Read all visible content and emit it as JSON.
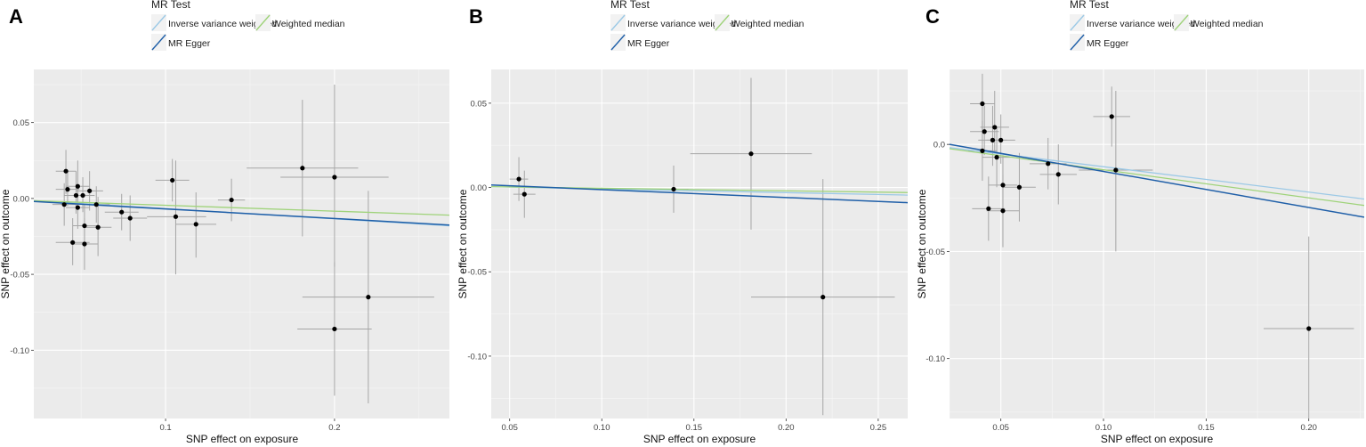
{
  "figure": {
    "legend_title": "MR Test",
    "methods": [
      {
        "name": "Inverse variance weighted",
        "color": "#9cc9e6"
      },
      {
        "name": "Weighted median",
        "color": "#9fd37a"
      },
      {
        "name": "MR Egger",
        "color": "#1f5fa8"
      }
    ],
    "colors": {
      "panel_bg": "#ebebeb",
      "grid_major": "#ffffff",
      "point": "#000000",
      "errorbar": "#a6a6a6"
    }
  },
  "chart_data": [
    {
      "panel": "A",
      "type": "scatter",
      "xlabel": "SNP effect on exposure",
      "ylabel": "SNP effect on outcome",
      "xlim": [
        0.022,
        0.268
      ],
      "ylim": [
        -0.145,
        0.085
      ],
      "xticks": [
        0.1,
        0.2
      ],
      "xtick_labels": [
        "0.1",
        "0.2"
      ],
      "yticks": [
        0.05,
        0.0,
        -0.05,
        -0.1
      ],
      "ytick_labels": [
        "0.05",
        "0.00",
        "-0.05",
        "-0.10"
      ],
      "points": [
        {
          "x": 0.041,
          "y": 0.018,
          "xlo": 0.035,
          "xhi": 0.047,
          "ylo": 0.003,
          "yhi": 0.032
        },
        {
          "x": 0.042,
          "y": 0.006,
          "xlo": 0.035,
          "xhi": 0.049,
          "ylo": -0.005,
          "yhi": 0.018
        },
        {
          "x": 0.048,
          "y": 0.008,
          "xlo": 0.041,
          "xhi": 0.055,
          "ylo": -0.004,
          "yhi": 0.025
        },
        {
          "x": 0.047,
          "y": 0.002,
          "xlo": 0.04,
          "xhi": 0.054,
          "ylo": -0.01,
          "yhi": 0.018
        },
        {
          "x": 0.051,
          "y": 0.002,
          "xlo": 0.044,
          "xhi": 0.058,
          "ylo": -0.009,
          "yhi": 0.014
        },
        {
          "x": 0.04,
          "y": -0.004,
          "xlo": 0.033,
          "xhi": 0.047,
          "ylo": -0.018,
          "yhi": 0.01
        },
        {
          "x": 0.048,
          "y": -0.006,
          "xlo": 0.041,
          "xhi": 0.055,
          "ylo": -0.02,
          "yhi": 0.008
        },
        {
          "x": 0.055,
          "y": 0.005,
          "xlo": 0.047,
          "xhi": 0.063,
          "ylo": -0.008,
          "yhi": 0.018
        },
        {
          "x": 0.059,
          "y": -0.004,
          "xlo": 0.051,
          "xhi": 0.067,
          "ylo": -0.016,
          "yhi": 0.008
        },
        {
          "x": 0.052,
          "y": -0.018,
          "xlo": 0.045,
          "xhi": 0.059,
          "ylo": -0.032,
          "yhi": -0.004
        },
        {
          "x": 0.06,
          "y": -0.019,
          "xlo": 0.052,
          "xhi": 0.068,
          "ylo": -0.038,
          "yhi": 0.001
        },
        {
          "x": 0.045,
          "y": -0.029,
          "xlo": 0.035,
          "xhi": 0.055,
          "ylo": -0.044,
          "yhi": -0.013
        },
        {
          "x": 0.052,
          "y": -0.03,
          "xlo": 0.044,
          "xhi": 0.06,
          "ylo": -0.047,
          "yhi": -0.013
        },
        {
          "x": 0.074,
          "y": -0.009,
          "xlo": 0.064,
          "xhi": 0.084,
          "ylo": -0.021,
          "yhi": 0.003
        },
        {
          "x": 0.079,
          "y": -0.013,
          "xlo": 0.069,
          "xhi": 0.089,
          "ylo": -0.028,
          "yhi": 0.002
        },
        {
          "x": 0.104,
          "y": 0.012,
          "xlo": 0.094,
          "xhi": 0.114,
          "ylo": -0.002,
          "yhi": 0.026
        },
        {
          "x": 0.106,
          "y": -0.012,
          "xlo": 0.089,
          "xhi": 0.124,
          "ylo": -0.05,
          "yhi": 0.025
        },
        {
          "x": 0.118,
          "y": -0.017,
          "xlo": 0.106,
          "xhi": 0.13,
          "ylo": -0.039,
          "yhi": 0.004
        },
        {
          "x": 0.139,
          "y": -0.001,
          "xlo": 0.131,
          "xhi": 0.147,
          "ylo": -0.015,
          "yhi": 0.013
        },
        {
          "x": 0.181,
          "y": 0.02,
          "xlo": 0.148,
          "xhi": 0.214,
          "ylo": -0.025,
          "yhi": 0.065
        },
        {
          "x": 0.2,
          "y": 0.014,
          "xlo": 0.168,
          "xhi": 0.232,
          "ylo": -0.045,
          "yhi": 0.075
        },
        {
          "x": 0.22,
          "y": -0.065,
          "xlo": 0.181,
          "xhi": 0.259,
          "ylo": -0.135,
          "yhi": 0.005
        },
        {
          "x": 0.2,
          "y": -0.086,
          "xlo": 0.178,
          "xhi": 0.222,
          "ylo": -0.13,
          "yhi": -0.042
        }
      ],
      "lines": [
        {
          "method": "Inverse variance weighted",
          "y_at_xmin": -0.0015,
          "y_at_xmax": -0.018
        },
        {
          "method": "Weighted median",
          "y_at_xmin": -0.0015,
          "y_at_xmax": -0.011
        },
        {
          "method": "MR Egger",
          "y_at_xmin": -0.002,
          "y_at_xmax": -0.0175
        }
      ]
    },
    {
      "panel": "B",
      "type": "scatter",
      "xlabel": "SNP effect on exposure",
      "ylabel": "SNP effect on outcome",
      "xlim": [
        0.04,
        0.266
      ],
      "ylim": [
        -0.137,
        0.07
      ],
      "xticks": [
        0.05,
        0.1,
        0.15,
        0.2,
        0.25
      ],
      "xtick_labels": [
        "0.05",
        "0.10",
        "0.15",
        "0.20",
        "0.25"
      ],
      "yticks": [
        0.05,
        0.0,
        -0.05,
        -0.1
      ],
      "ytick_labels": [
        "0.05",
        "0.00",
        "-0.05",
        "-0.10"
      ],
      "points": [
        {
          "x": 0.055,
          "y": 0.005,
          "xlo": 0.05,
          "xhi": 0.06,
          "ylo": -0.008,
          "yhi": 0.018
        },
        {
          "x": 0.058,
          "y": -0.004,
          "xlo": 0.052,
          "xhi": 0.064,
          "ylo": -0.018,
          "yhi": 0.01
        },
        {
          "x": 0.139,
          "y": -0.001,
          "xlo": 0.131,
          "xhi": 0.147,
          "ylo": -0.015,
          "yhi": 0.013
        },
        {
          "x": 0.181,
          "y": 0.02,
          "xlo": 0.148,
          "xhi": 0.214,
          "ylo": -0.025,
          "yhi": 0.065
        },
        {
          "x": 0.22,
          "y": -0.065,
          "xlo": 0.181,
          "xhi": 0.259,
          "ylo": -0.135,
          "yhi": 0.005
        }
      ],
      "lines": [
        {
          "method": "Inverse variance weighted",
          "y_at_xmin": 0.0005,
          "y_at_xmax": -0.0045
        },
        {
          "method": "Weighted median",
          "y_at_xmin": 0.0005,
          "y_at_xmax": -0.003
        },
        {
          "method": "MR Egger",
          "y_at_xmin": 0.0015,
          "y_at_xmax": -0.009
        }
      ]
    },
    {
      "panel": "C",
      "type": "scatter",
      "xlabel": "SNP effect on exposure",
      "ylabel": "SNP effect on outcome",
      "xlim": [
        0.025,
        0.227
      ],
      "ylim": [
        -0.128,
        0.035
      ],
      "xticks": [
        0.05,
        0.1,
        0.15,
        0.2
      ],
      "xtick_labels": [
        "0.05",
        "0.10",
        "0.15",
        "0.20"
      ],
      "yticks": [
        0.0,
        -0.05,
        -0.1
      ],
      "ytick_labels": [
        "0.0",
        "-0.05",
        "-0.10"
      ],
      "points": [
        {
          "x": 0.041,
          "y": 0.019,
          "xlo": 0.035,
          "xhi": 0.047,
          "ylo": 0.005,
          "yhi": 0.033
        },
        {
          "x": 0.042,
          "y": 0.006,
          "xlo": 0.035,
          "xhi": 0.049,
          "ylo": -0.005,
          "yhi": 0.018
        },
        {
          "x": 0.047,
          "y": 0.008,
          "xlo": 0.04,
          "xhi": 0.054,
          "ylo": -0.004,
          "yhi": 0.025
        },
        {
          "x": 0.046,
          "y": 0.002,
          "xlo": 0.039,
          "xhi": 0.053,
          "ylo": -0.01,
          "yhi": 0.018
        },
        {
          "x": 0.05,
          "y": 0.002,
          "xlo": 0.043,
          "xhi": 0.057,
          "ylo": -0.009,
          "yhi": 0.014
        },
        {
          "x": 0.041,
          "y": -0.003,
          "xlo": 0.034,
          "xhi": 0.048,
          "ylo": -0.017,
          "yhi": 0.011
        },
        {
          "x": 0.048,
          "y": -0.006,
          "xlo": 0.041,
          "xhi": 0.055,
          "ylo": -0.02,
          "yhi": 0.008
        },
        {
          "x": 0.051,
          "y": -0.019,
          "xlo": 0.044,
          "xhi": 0.058,
          "ylo": -0.033,
          "yhi": -0.005
        },
        {
          "x": 0.059,
          "y": -0.02,
          "xlo": 0.051,
          "xhi": 0.067,
          "ylo": -0.036,
          "yhi": -0.004
        },
        {
          "x": 0.044,
          "y": -0.03,
          "xlo": 0.036,
          "xhi": 0.052,
          "ylo": -0.045,
          "yhi": -0.015
        },
        {
          "x": 0.051,
          "y": -0.031,
          "xlo": 0.043,
          "xhi": 0.059,
          "ylo": -0.048,
          "yhi": -0.014
        },
        {
          "x": 0.073,
          "y": -0.009,
          "xlo": 0.064,
          "xhi": 0.082,
          "ylo": -0.021,
          "yhi": 0.003
        },
        {
          "x": 0.078,
          "y": -0.014,
          "xlo": 0.069,
          "xhi": 0.087,
          "ylo": -0.028,
          "yhi": 0.0
        },
        {
          "x": 0.104,
          "y": 0.013,
          "xlo": 0.095,
          "xhi": 0.113,
          "ylo": -0.001,
          "yhi": 0.027
        },
        {
          "x": 0.106,
          "y": -0.012,
          "xlo": 0.088,
          "xhi": 0.124,
          "ylo": -0.05,
          "yhi": 0.025
        },
        {
          "x": 0.2,
          "y": -0.086,
          "xlo": 0.178,
          "xhi": 0.222,
          "ylo": -0.128,
          "yhi": -0.043
        }
      ],
      "lines": [
        {
          "method": "Inverse variance weighted",
          "y_at_xmin": -0.0015,
          "y_at_xmax": -0.0255
        },
        {
          "method": "Weighted median",
          "y_at_xmin": -0.002,
          "y_at_xmax": -0.0285
        },
        {
          "method": "MR Egger",
          "y_at_xmin": 0.0,
          "y_at_xmax": -0.034
        }
      ]
    }
  ]
}
